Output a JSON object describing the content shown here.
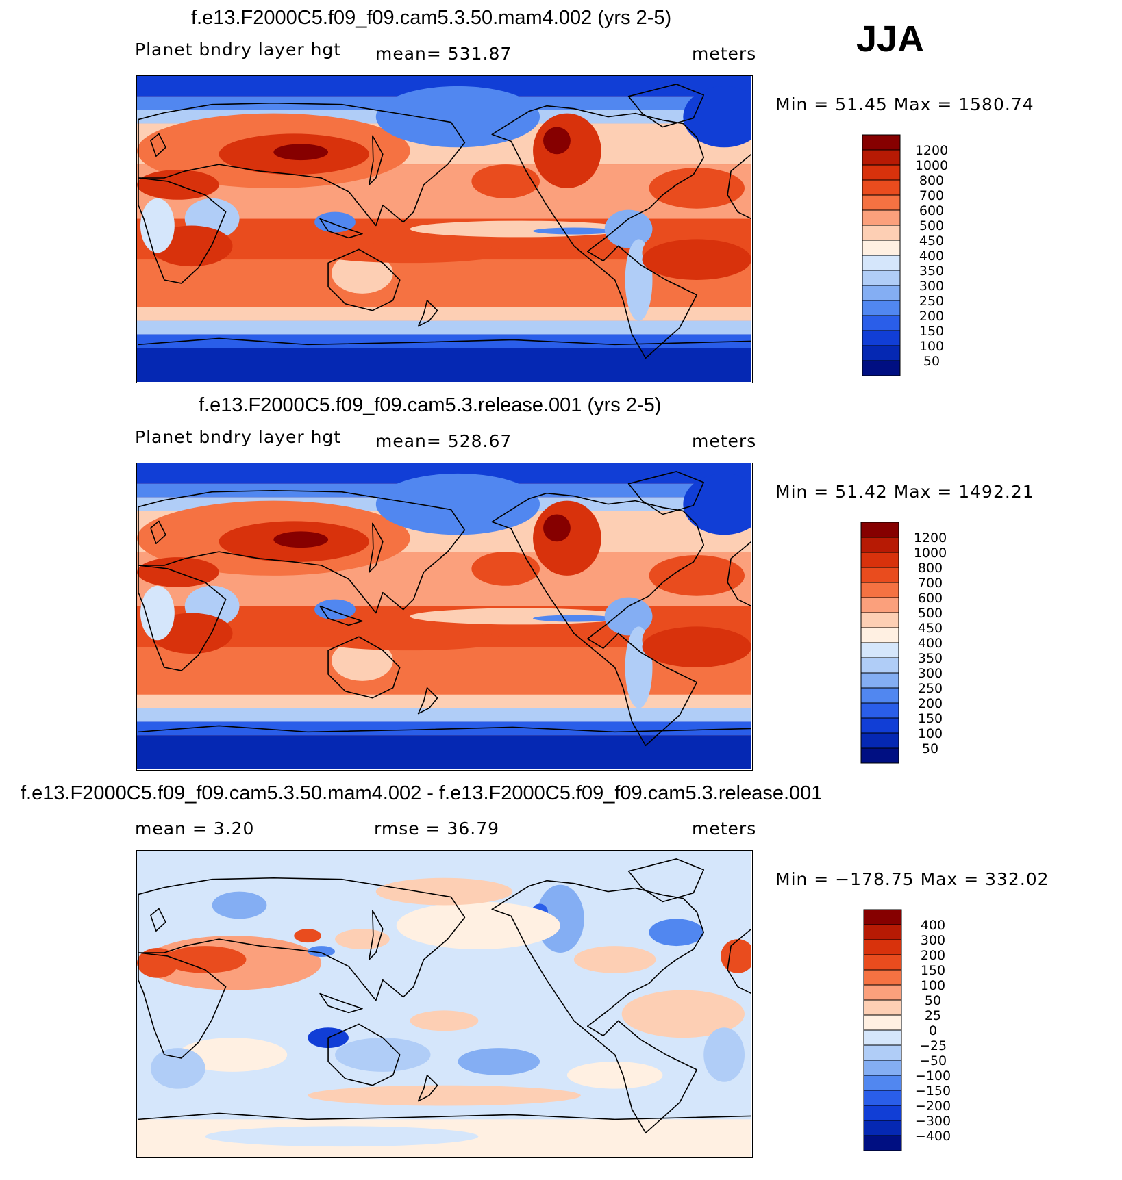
{
  "season": "JJA",
  "panels": [
    {
      "title": "f.e13.F2000C5.f09_f09.cam5.3.50.mam4.002 (yrs 2-5)",
      "left": "Planet bndry layer hgt",
      "center": "mean= 531.87",
      "right": "meters",
      "minmax": "Min =   51.45  Max  =  1580.74",
      "kind": "field"
    },
    {
      "title": "f.e13.F2000C5.f09_f09.cam5.3.release.001 (yrs 2-5)",
      "left": "Planet bndry layer hgt",
      "center": "mean= 528.67",
      "right": "meters",
      "minmax": "Min =   51.42  Max  =  1492.21",
      "kind": "field"
    },
    {
      "title": "f.e13.F2000C5.f09_f09.cam5.3.50.mam4.002 - f.e13.F2000C5.f09_f09.cam5.3.release.001",
      "left": "mean =    3.20",
      "center": "rmse =   36.79",
      "right": "meters",
      "minmax": "Min = −178.75  Max  =  332.02",
      "kind": "diff"
    }
  ],
  "chart_data": [
    {
      "type": "heatmap",
      "title": "f.e13.F2000C5.f09_f09.cam5.3.50.mam4.002 (yrs 2-5)",
      "variable": "Planet bndry layer hgt",
      "units": "meters",
      "mean": 531.87,
      "min": 51.45,
      "max": 1580.74,
      "colorbar_levels": [
        1200,
        1000,
        800,
        700,
        600,
        500,
        450,
        400,
        350,
        300,
        250,
        200,
        150,
        100,
        50
      ],
      "colors": [
        "#860000",
        "#b71a04",
        "#d8320c",
        "#e94c1e",
        "#f57242",
        "#fba07c",
        "#fdcfb4",
        "#fff0e2",
        "#d5e6fb",
        "#b0cdf7",
        "#84aef3",
        "#5187f0",
        "#2a5ee9",
        "#113ed6",
        "#0528b3",
        "#000f82"
      ]
    },
    {
      "type": "heatmap",
      "title": "f.e13.F2000C5.f09_f09.cam5.3.release.001 (yrs 2-5)",
      "variable": "Planet bndry layer hgt",
      "units": "meters",
      "mean": 528.67,
      "min": 51.42,
      "max": 1492.21,
      "colorbar_levels": [
        1200,
        1000,
        800,
        700,
        600,
        500,
        450,
        400,
        350,
        300,
        250,
        200,
        150,
        100,
        50
      ],
      "colors": [
        "#860000",
        "#b71a04",
        "#d8320c",
        "#e94c1e",
        "#f57242",
        "#fba07c",
        "#fdcfb4",
        "#fff0e2",
        "#d5e6fb",
        "#b0cdf7",
        "#84aef3",
        "#5187f0",
        "#2a5ee9",
        "#113ed6",
        "#0528b3",
        "#000f82"
      ]
    },
    {
      "type": "heatmap",
      "title": "f.e13.F2000C5.f09_f09.cam5.3.50.mam4.002 - f.e13.F2000C5.f09_f09.cam5.3.release.001",
      "units": "meters",
      "mean": 3.2,
      "rmse": 36.79,
      "min": -178.75,
      "max": 332.02,
      "colorbar_levels": [
        "400",
        "300",
        "200",
        "150",
        "100",
        "50",
        "25",
        "0",
        "−25",
        "−50",
        "−100",
        "−150",
        "−200",
        "−300",
        "−400"
      ],
      "colors": [
        "#860000",
        "#b71a04",
        "#d8320c",
        "#e94c1e",
        "#f57242",
        "#fba07c",
        "#fdcfb4",
        "#fff0e2",
        "#d5e6fb",
        "#b0cdf7",
        "#84aef3",
        "#5187f0",
        "#2a5ee9",
        "#113ed6",
        "#0528b3",
        "#000f82"
      ]
    }
  ]
}
